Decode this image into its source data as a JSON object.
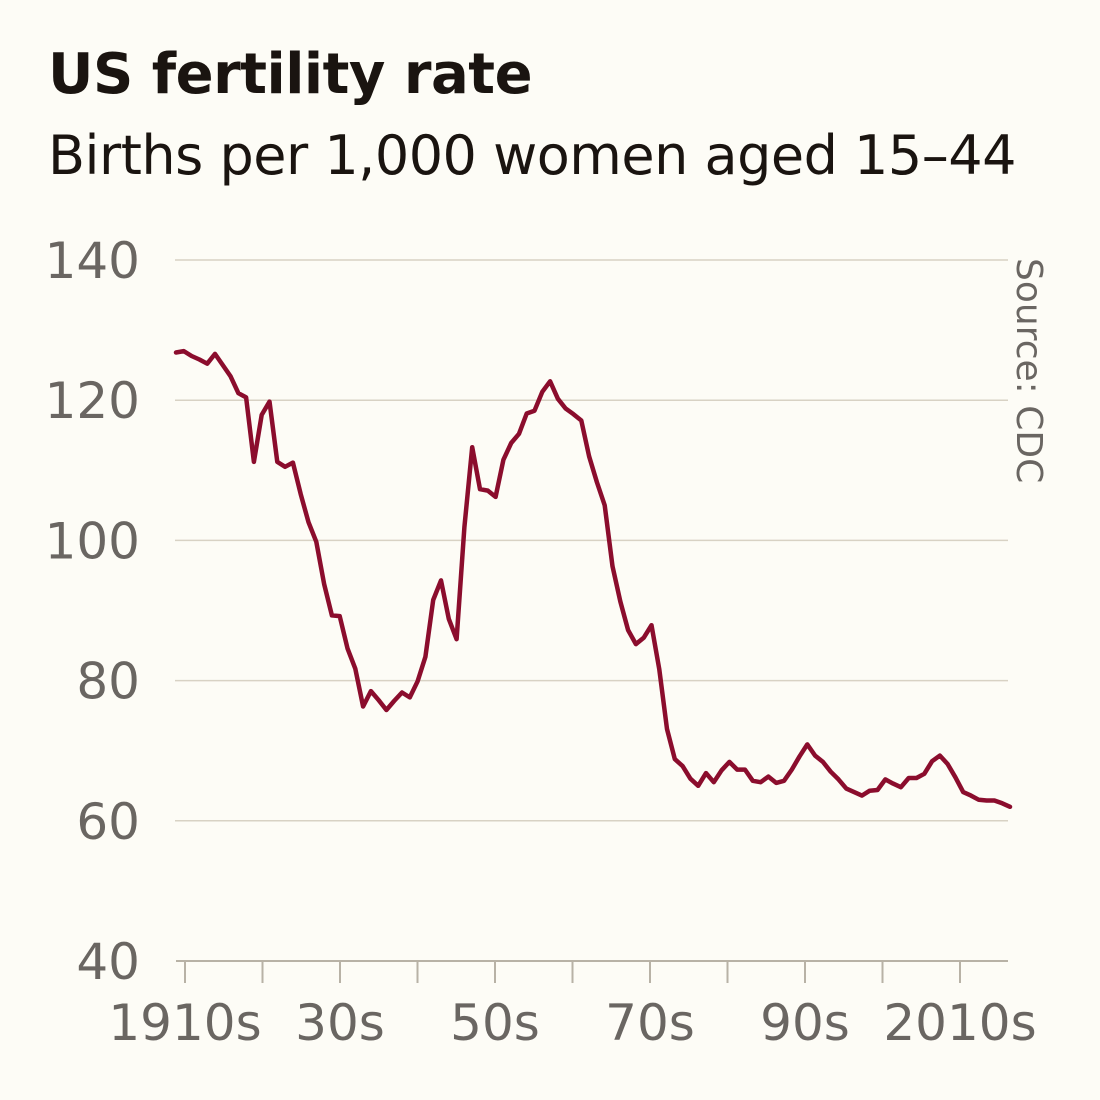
{
  "title": "US fertility rate",
  "subtitle": "Births per 1,000 women aged 15–44",
  "source": "Source: CDC",
  "colors": {
    "line": "#8b0d2d",
    "grid": "#d8d2c4",
    "axis": "#b8b2a6",
    "tick_text": "#6a6662",
    "background": "#fdfcf6"
  },
  "chart_data": {
    "type": "line",
    "title": "US fertility rate",
    "subtitle": "Births per 1,000 women aged 15–44",
    "xlabel": "",
    "ylabel": "",
    "ylim": [
      40,
      140
    ],
    "xlim": [
      1909,
      2017
    ],
    "y_ticks": [
      40,
      60,
      80,
      100,
      120,
      140
    ],
    "x_tick_positions": [
      1910,
      1920,
      1930,
      1940,
      1950,
      1960,
      1970,
      1980,
      1990,
      2000,
      2010
    ],
    "x_tick_labels": [
      {
        "year": 1910,
        "label": "1910s"
      },
      {
        "year": 1930,
        "label": "30s"
      },
      {
        "year": 1950,
        "label": "50s"
      },
      {
        "year": 1970,
        "label": "70s"
      },
      {
        "year": 1990,
        "label": "90s"
      },
      {
        "year": 2010,
        "label": "2010s"
      }
    ],
    "grid": true,
    "source": "Source: CDC",
    "series": [
      {
        "x": [
          1909,
          1910,
          1911,
          1912,
          1913,
          1914,
          1915,
          1916,
          1917,
          1918,
          1919,
          1920,
          1921,
          1922,
          1923,
          1924,
          1925,
          1926,
          1927,
          1928,
          1929,
          1930,
          1931,
          1932,
          1933,
          1934,
          1935,
          1936,
          1937,
          1938,
          1939,
          1940,
          1941,
          1942,
          1943,
          1944,
          1945,
          1946,
          1947,
          1948,
          1949,
          1950,
          1951,
          1952,
          1953,
          1954,
          1955,
          1956,
          1957,
          1958,
          1959,
          1960,
          1961,
          1962,
          1963,
          1964,
          1965,
          1966,
          1967,
          1968,
          1969,
          1970,
          1971,
          1972,
          1973,
          1974,
          1975,
          1976,
          1977,
          1978,
          1979,
          1980,
          1981,
          1982,
          1983,
          1984,
          1985,
          1986,
          1987,
          1988,
          1989,
          1990,
          1991,
          1992,
          1993,
          1994,
          1995,
          1996,
          1997,
          1998,
          1999,
          2000,
          2001,
          2002,
          2003,
          2004,
          2005,
          2006,
          2007,
          2008,
          2009,
          2010,
          2011,
          2012,
          2013,
          2014,
          2015,
          2016
        ],
        "values": [
          126.8,
          127.0,
          126.3,
          125.8,
          125.2,
          126.6,
          125.0,
          123.4,
          121.0,
          120.4,
          111.2,
          117.9,
          119.8,
          111.2,
          110.5,
          111.1,
          106.6,
          102.6,
          99.8,
          93.8,
          89.3,
          89.2,
          84.6,
          81.7,
          76.3,
          78.5,
          77.2,
          75.8,
          77.1,
          78.3,
          77.6,
          79.9,
          83.4,
          91.5,
          94.3,
          88.8,
          85.9,
          101.9,
          113.3,
          107.3,
          107.1,
          106.2,
          111.5,
          113.9,
          115.2,
          118.1,
          118.5,
          121.2,
          122.7,
          120.2,
          118.8,
          118.0,
          117.1,
          112.0,
          108.3,
          105.0,
          96.3,
          91.3,
          87.2,
          85.2,
          86.1,
          87.9,
          81.6,
          73.1,
          68.8,
          67.8,
          66.0,
          65.0,
          66.8,
          65.5,
          67.2,
          68.4,
          67.3,
          67.3,
          65.7,
          65.5,
          66.3,
          65.4,
          65.7,
          67.3,
          69.2,
          70.9,
          69.3,
          68.4,
          67.0,
          65.9,
          64.6,
          64.1,
          63.6,
          64.3,
          64.4,
          65.9,
          65.3,
          64.8,
          66.1,
          66.1,
          66.7,
          68.5,
          69.3,
          68.1,
          66.2,
          64.1,
          63.6,
          63.0,
          62.9,
          62.9,
          62.5,
          62.0
        ]
      }
    ]
  }
}
